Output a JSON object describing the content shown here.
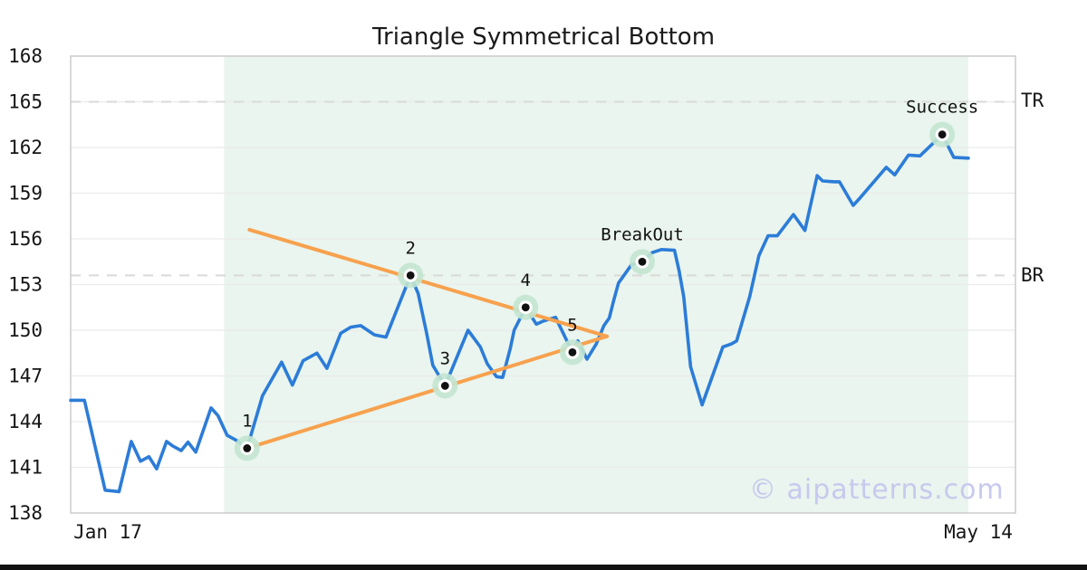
{
  "chart_data": {
    "type": "line",
    "title": "Triangle Symmetrical Bottom",
    "x_axis": {
      "tick_labels": [
        "Jan 17",
        "May 14"
      ],
      "tick_days": [
        5,
        118.3
      ],
      "range_days": [
        0,
        123.1
      ]
    },
    "y_axis": {
      "ticks": [
        168,
        165,
        162,
        159,
        156,
        153,
        150,
        147,
        144,
        141,
        138
      ],
      "range": [
        138,
        168
      ],
      "grid": true
    },
    "levels": {
      "tr_label": "TR",
      "tr_value": 165,
      "br_label": "BR",
      "br_value": 153.6
    },
    "pattern_shade_days": [
      20,
      117
    ],
    "series": {
      "name": "price",
      "points": [
        [
          0,
          145.4
        ],
        [
          1.8,
          145.4
        ],
        [
          4.5,
          139.5
        ],
        [
          6.3,
          139.4
        ],
        [
          7.9,
          142.7
        ],
        [
          9.1,
          141.4
        ],
        [
          10.2,
          141.7
        ],
        [
          11.2,
          140.9
        ],
        [
          12.5,
          142.7
        ],
        [
          13.3,
          142.4
        ],
        [
          14.4,
          142.1
        ],
        [
          15.3,
          142.65
        ],
        [
          16.3,
          142.0
        ],
        [
          18.3,
          144.9
        ],
        [
          19.2,
          144.4
        ],
        [
          20.4,
          143.1
        ],
        [
          21.5,
          142.8
        ],
        [
          23,
          142.25
        ],
        [
          25,
          145.7
        ],
        [
          27.5,
          147.9
        ],
        [
          28.9,
          146.4
        ],
        [
          30.3,
          148.0
        ],
        [
          32.1,
          148.5
        ],
        [
          33.4,
          147.5
        ],
        [
          35.2,
          149.8
        ],
        [
          36.5,
          150.2
        ],
        [
          37.8,
          150.3
        ],
        [
          39.6,
          149.7
        ],
        [
          41.1,
          149.55
        ],
        [
          44.3,
          153.6
        ],
        [
          45.3,
          152.4
        ],
        [
          46.4,
          149.8
        ],
        [
          47.2,
          147.7
        ],
        [
          48.8,
          146.35
        ],
        [
          51.8,
          150.0
        ],
        [
          53.4,
          148.9
        ],
        [
          54.3,
          147.8
        ],
        [
          55.5,
          146.95
        ],
        [
          56.3,
          146.9
        ],
        [
          57.3,
          148.8
        ],
        [
          57.8,
          150.0
        ],
        [
          59.3,
          151.5
        ],
        [
          60.7,
          150.4
        ],
        [
          61.6,
          150.6
        ],
        [
          63.2,
          150.85
        ],
        [
          65.4,
          148.55
        ],
        [
          66.1,
          149.3
        ],
        [
          67.3,
          148.1
        ],
        [
          68.5,
          149.1
        ],
        [
          69.5,
          150.3
        ],
        [
          70.2,
          150.8
        ],
        [
          70.8,
          152.0
        ],
        [
          71.4,
          153.1
        ],
        [
          73.1,
          154.3
        ],
        [
          74.5,
          154.5
        ],
        [
          75.8,
          155.1
        ],
        [
          77,
          155.3
        ],
        [
          78.7,
          155.25
        ],
        [
          79.3,
          153.9
        ],
        [
          79.9,
          152.2
        ],
        [
          80.8,
          147.6
        ],
        [
          82.3,
          145.1
        ],
        [
          85,
          148.9
        ],
        [
          86.1,
          149.1
        ],
        [
          86.8,
          149.3
        ],
        [
          88.5,
          152.2
        ],
        [
          89.7,
          154.9
        ],
        [
          90.9,
          156.2
        ],
        [
          92.1,
          156.2
        ],
        [
          94.2,
          157.6
        ],
        [
          95.7,
          156.55
        ],
        [
          97.3,
          160.15
        ],
        [
          98,
          159.8
        ],
        [
          99.5,
          159.75
        ],
        [
          100.2,
          159.75
        ],
        [
          102,
          158.2
        ],
        [
          102.9,
          158.7
        ],
        [
          106.3,
          160.7
        ],
        [
          107.4,
          160.2
        ],
        [
          109.2,
          161.5
        ],
        [
          110.7,
          161.45
        ],
        [
          113.6,
          162.85
        ],
        [
          115.1,
          161.35
        ],
        [
          117,
          161.3
        ]
      ]
    },
    "trendlines": {
      "upper": [
        [
          23.3,
          156.6
        ],
        [
          69.9,
          149.6
        ]
      ],
      "lower": [
        [
          23.0,
          142.25
        ],
        [
          69.9,
          149.6
        ]
      ]
    },
    "markers": [
      {
        "label": "1",
        "day": 23.0,
        "value": 142.25
      },
      {
        "label": "2",
        "day": 44.3,
        "value": 153.6
      },
      {
        "label": "3",
        "day": 48.8,
        "value": 146.35
      },
      {
        "label": "4",
        "day": 59.3,
        "value": 151.5
      },
      {
        "label": "5",
        "day": 65.4,
        "value": 148.55
      },
      {
        "label": "BreakOut",
        "day": 74.5,
        "value": 154.5
      },
      {
        "label": "Success",
        "day": 113.6,
        "value": 162.85
      }
    ],
    "colors": {
      "price_line": "#2c7cd8",
      "trendline": "#f7a14e",
      "pattern_shade": "#e9f5ee",
      "marker_halo": "#c3e5d0",
      "marker_dot": "#111111",
      "dashed_level": "#d9d9d9",
      "gridline": "#ebebeb",
      "border": "#cccccc",
      "watermark": "#c8c9ee",
      "bottom_bar": "#111111"
    }
  },
  "watermark": {
    "text": "© aipatterns.com"
  }
}
